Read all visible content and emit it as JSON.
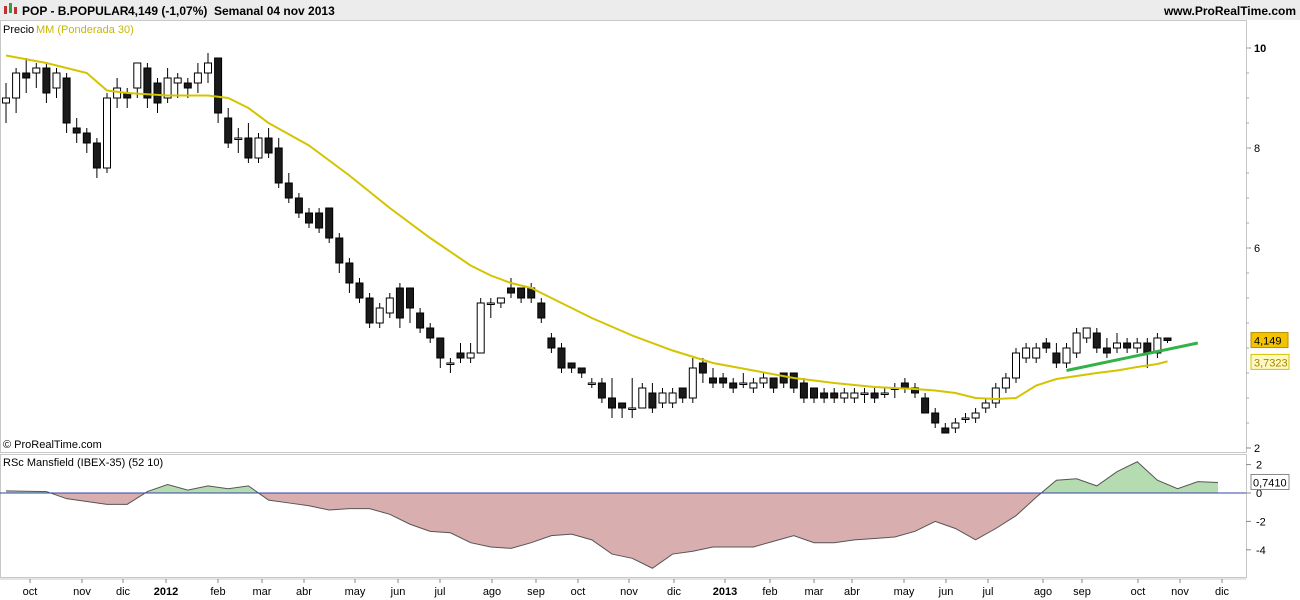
{
  "header": {
    "symbol": "POP - B.POPULAR",
    "last": "4,149 (-1,07%)",
    "period": "Semanal  04 nov 2013",
    "site": "www.ProRealTime.com"
  },
  "legend": {
    "price_label": "Precio",
    "ma_label": "MM (Ponderada 30)"
  },
  "watermark": "© ProRealTime.com",
  "colors": {
    "up_fill": "#ffffff",
    "down_fill": "#1a1a1a",
    "wick": "#000000",
    "ma": "#d4c400",
    "trend": "#33b24a",
    "rsc_pos": "#b5dcb0",
    "rsc_neg": "#d9aeae",
    "rsc_line": "#555555",
    "zero_line": "#3344aa",
    "badge_price": "#f3c200",
    "badge_ma": "#fff7c2"
  },
  "chart_data": [
    {
      "type": "candlestick",
      "xlabels": [
        "oct",
        "nov",
        "dic",
        "2012",
        "feb",
        "mar",
        "abr",
        "may",
        "jun",
        "jul",
        "ago",
        "sep",
        "oct",
        "nov",
        "dic",
        "2013",
        "feb",
        "mar",
        "abr",
        "may",
        "jun",
        "jul",
        "ago",
        "sep",
        "oct",
        "nov",
        "dic"
      ],
      "y_ticks": [
        "10",
        "8",
        "6",
        "2"
      ],
      "ylim": [
        2,
        10.2
      ],
      "last_price": "4,149",
      "ma_last": "3,7323",
      "candles": [
        [
          8.9,
          9.3,
          8.5,
          9.0
        ],
        [
          9.0,
          9.6,
          8.7,
          9.5
        ],
        [
          9.5,
          9.8,
          9.1,
          9.4
        ],
        [
          9.5,
          9.7,
          9.2,
          9.6
        ],
        [
          9.6,
          9.7,
          8.9,
          9.1
        ],
        [
          9.2,
          9.6,
          9.0,
          9.5
        ],
        [
          9.4,
          9.5,
          8.3,
          8.5
        ],
        [
          8.4,
          8.6,
          8.1,
          8.3
        ],
        [
          8.3,
          8.4,
          7.9,
          8.1
        ],
        [
          8.1,
          8.2,
          7.4,
          7.6
        ],
        [
          7.6,
          9.1,
          7.5,
          9.0
        ],
        [
          9.0,
          9.4,
          8.8,
          9.2
        ],
        [
          9.1,
          9.2,
          8.8,
          9.0
        ],
        [
          9.2,
          9.7,
          9.0,
          9.7
        ],
        [
          9.6,
          9.7,
          8.8,
          9.0
        ],
        [
          9.3,
          9.4,
          8.7,
          8.9
        ],
        [
          9.0,
          9.6,
          8.9,
          9.4
        ],
        [
          9.3,
          9.5,
          9.0,
          9.4
        ],
        [
          9.3,
          9.4,
          9.0,
          9.2
        ],
        [
          9.3,
          9.7,
          9.1,
          9.5
        ],
        [
          9.5,
          9.9,
          9.3,
          9.7
        ],
        [
          9.8,
          9.8,
          8.5,
          8.7
        ],
        [
          8.6,
          8.8,
          8.0,
          8.1
        ],
        [
          8.2,
          8.4,
          7.9,
          8.2
        ],
        [
          8.2,
          8.5,
          7.7,
          7.8
        ],
        [
          7.8,
          8.3,
          7.7,
          8.2
        ],
        [
          8.2,
          8.4,
          7.8,
          7.9
        ],
        [
          8.0,
          8.2,
          7.2,
          7.3
        ],
        [
          7.3,
          7.5,
          6.9,
          7.0
        ],
        [
          7.0,
          7.1,
          6.6,
          6.7
        ],
        [
          6.7,
          6.8,
          6.4,
          6.5
        ],
        [
          6.7,
          6.8,
          6.3,
          6.4
        ],
        [
          6.8,
          6.8,
          6.1,
          6.2
        ],
        [
          6.2,
          6.3,
          5.5,
          5.7
        ],
        [
          5.7,
          5.8,
          5.1,
          5.3
        ],
        [
          5.3,
          5.4,
          4.9,
          5.0
        ],
        [
          5.0,
          5.1,
          4.4,
          4.5
        ],
        [
          4.5,
          4.9,
          4.4,
          4.8
        ],
        [
          4.7,
          5.1,
          4.6,
          5.0
        ],
        [
          5.2,
          5.3,
          4.4,
          4.6
        ],
        [
          5.2,
          5.2,
          4.5,
          4.8
        ],
        [
          4.7,
          4.8,
          4.3,
          4.4
        ],
        [
          4.4,
          4.5,
          4.1,
          4.2
        ],
        [
          4.2,
          4.2,
          3.6,
          3.8
        ],
        [
          3.7,
          3.8,
          3.5,
          3.7
        ],
        [
          3.9,
          4.1,
          3.7,
          3.8
        ],
        [
          3.8,
          4.1,
          3.7,
          3.9
        ],
        [
          3.9,
          5.0,
          3.9,
          4.9
        ],
        [
          4.9,
          5.0,
          4.6,
          4.9
        ],
        [
          4.9,
          5.0,
          4.8,
          5.0
        ],
        [
          5.2,
          5.4,
          5.0,
          5.1
        ],
        [
          5.2,
          5.2,
          4.9,
          5.0
        ],
        [
          5.2,
          5.3,
          4.9,
          5.0
        ],
        [
          4.9,
          5.0,
          4.5,
          4.6
        ],
        [
          4.2,
          4.3,
          3.9,
          4.0
        ],
        [
          4.0,
          4.1,
          3.5,
          3.6
        ],
        [
          3.7,
          3.7,
          3.5,
          3.6
        ],
        [
          3.6,
          3.6,
          3.4,
          3.5
        ],
        [
          3.3,
          3.4,
          3.2,
          3.3
        ],
        [
          3.3,
          3.4,
          2.9,
          3.0
        ],
        [
          3.0,
          3.4,
          2.6,
          2.8
        ],
        [
          2.9,
          2.9,
          2.6,
          2.8
        ],
        [
          2.8,
          3.4,
          2.6,
          2.8
        ],
        [
          2.8,
          3.3,
          2.8,
          3.2
        ],
        [
          3.1,
          3.3,
          2.7,
          2.8
        ],
        [
          2.9,
          3.2,
          2.8,
          3.1
        ],
        [
          2.9,
          3.2,
          2.8,
          3.1
        ],
        [
          3.2,
          3.2,
          2.9,
          3.0
        ],
        [
          3.0,
          3.8,
          2.9,
          3.6
        ],
        [
          3.7,
          3.8,
          3.3,
          3.5
        ],
        [
          3.4,
          3.6,
          3.2,
          3.3
        ],
        [
          3.4,
          3.5,
          3.2,
          3.3
        ],
        [
          3.3,
          3.4,
          3.1,
          3.2
        ],
        [
          3.3,
          3.5,
          3.2,
          3.3
        ],
        [
          3.2,
          3.4,
          3.1,
          3.3
        ],
        [
          3.3,
          3.5,
          3.2,
          3.4
        ],
        [
          3.4,
          3.4,
          3.1,
          3.2
        ],
        [
          3.5,
          3.5,
          3.2,
          3.3
        ],
        [
          3.5,
          3.5,
          3.1,
          3.2
        ],
        [
          3.3,
          3.4,
          2.9,
          3.0
        ],
        [
          3.2,
          3.2,
          2.9,
          3.0
        ],
        [
          3.1,
          3.2,
          2.9,
          3.0
        ],
        [
          3.1,
          3.2,
          2.9,
          3.0
        ],
        [
          3.0,
          3.2,
          2.9,
          3.1
        ],
        [
          3.0,
          3.2,
          2.9,
          3.1
        ],
        [
          3.1,
          3.2,
          2.9,
          3.1
        ],
        [
          3.1,
          3.2,
          2.9,
          3.0
        ],
        [
          3.1,
          3.2,
          3.0,
          3.1
        ],
        [
          3.2,
          3.3,
          3.0,
          3.2
        ],
        [
          3.3,
          3.4,
          3.1,
          3.2
        ],
        [
          3.2,
          3.3,
          3.0,
          3.1
        ],
        [
          3.0,
          3.1,
          2.7,
          2.7
        ],
        [
          2.7,
          2.8,
          2.4,
          2.5
        ],
        [
          2.4,
          2.5,
          2.3,
          2.3
        ],
        [
          2.4,
          2.6,
          2.3,
          2.5
        ],
        [
          2.6,
          2.7,
          2.5,
          2.6
        ],
        [
          2.6,
          2.8,
          2.5,
          2.7
        ],
        [
          2.8,
          3.0,
          2.7,
          2.9
        ],
        [
          2.9,
          3.3,
          2.8,
          3.2
        ],
        [
          3.2,
          3.5,
          3.1,
          3.4
        ],
        [
          3.4,
          4.0,
          3.3,
          3.9
        ],
        [
          3.8,
          4.1,
          3.7,
          4.0
        ],
        [
          3.8,
          4.1,
          3.7,
          4.0
        ],
        [
          4.1,
          4.2,
          3.9,
          4.0
        ],
        [
          3.9,
          4.1,
          3.6,
          3.7
        ],
        [
          3.7,
          4.1,
          3.6,
          4.0
        ],
        [
          3.9,
          4.4,
          3.8,
          4.3
        ],
        [
          4.2,
          4.4,
          4.1,
          4.4
        ],
        [
          4.3,
          4.4,
          3.9,
          4.0
        ],
        [
          4.0,
          4.2,
          3.8,
          3.9
        ],
        [
          4.0,
          4.3,
          3.9,
          4.1
        ],
        [
          4.1,
          4.2,
          3.9,
          4.0
        ],
        [
          4.0,
          4.2,
          3.9,
          4.1
        ],
        [
          4.1,
          4.2,
          3.6,
          3.9
        ],
        [
          3.9,
          4.3,
          3.8,
          4.2
        ],
        [
          4.2,
          4.2,
          4.1,
          4.15
        ]
      ],
      "ma": [
        [
          0,
          9.85
        ],
        [
          4,
          9.7
        ],
        [
          8,
          9.5
        ],
        [
          10,
          9.15
        ],
        [
          12,
          9.1
        ],
        [
          16,
          9.05
        ],
        [
          20,
          9.05
        ],
        [
          22,
          9.0
        ],
        [
          24,
          8.8
        ],
        [
          26,
          8.5
        ],
        [
          30,
          8.05
        ],
        [
          34,
          7.45
        ],
        [
          38,
          6.8
        ],
        [
          42,
          6.2
        ],
        [
          46,
          5.65
        ],
        [
          48,
          5.45
        ],
        [
          50,
          5.3
        ],
        [
          52,
          5.2
        ],
        [
          54,
          5.0
        ],
        [
          58,
          4.6
        ],
        [
          62,
          4.25
        ],
        [
          66,
          3.95
        ],
        [
          70,
          3.7
        ],
        [
          74,
          3.55
        ],
        [
          78,
          3.4
        ],
        [
          82,
          3.3
        ],
        [
          86,
          3.22
        ],
        [
          90,
          3.18
        ],
        [
          92,
          3.15
        ],
        [
          94,
          3.1
        ],
        [
          96,
          3.0
        ],
        [
          98,
          2.98
        ],
        [
          100,
          3.0
        ],
        [
          102,
          3.25
        ],
        [
          104,
          3.38
        ],
        [
          106,
          3.44
        ],
        [
          108,
          3.5
        ],
        [
          110,
          3.55
        ],
        [
          112,
          3.62
        ],
        [
          114,
          3.68
        ],
        [
          115,
          3.7323
        ]
      ],
      "trendline": [
        [
          105,
          3.55
        ],
        [
          118,
          4.1
        ]
      ]
    },
    {
      "type": "area",
      "title": "RSc Mansfield (IBEX-35) (52 10)",
      "y_ticks": [
        "2",
        "0",
        "-2",
        "-4"
      ],
      "ylim": [
        -5.8,
        2.5
      ],
      "last_value": "0,7410",
      "values": [
        [
          0,
          0.15
        ],
        [
          4,
          0.1
        ],
        [
          6,
          -0.4
        ],
        [
          8,
          -0.6
        ],
        [
          10,
          -0.8
        ],
        [
          12,
          -0.8
        ],
        [
          14,
          0.1
        ],
        [
          16,
          0.6
        ],
        [
          18,
          0.2
        ],
        [
          20,
          0.5
        ],
        [
          22,
          0.3
        ],
        [
          24,
          0.5
        ],
        [
          26,
          -0.5
        ],
        [
          28,
          -0.7
        ],
        [
          30,
          -0.9
        ],
        [
          32,
          -1.2
        ],
        [
          34,
          -1.1
        ],
        [
          36,
          -1.1
        ],
        [
          38,
          -1.5
        ],
        [
          40,
          -2.2
        ],
        [
          42,
          -2.7
        ],
        [
          44,
          -2.8
        ],
        [
          46,
          -3.5
        ],
        [
          48,
          -3.8
        ],
        [
          50,
          -3.9
        ],
        [
          52,
          -3.5
        ],
        [
          54,
          -3.0
        ],
        [
          56,
          -2.9
        ],
        [
          58,
          -3.3
        ],
        [
          60,
          -4.3
        ],
        [
          62,
          -4.6
        ],
        [
          64,
          -5.3
        ],
        [
          66,
          -4.3
        ],
        [
          68,
          -4.1
        ],
        [
          70,
          -3.8
        ],
        [
          72,
          -3.8
        ],
        [
          74,
          -3.8
        ],
        [
          76,
          -3.4
        ],
        [
          78,
          -3.0
        ],
        [
          80,
          -3.5
        ],
        [
          82,
          -3.5
        ],
        [
          84,
          -3.3
        ],
        [
          86,
          -3.2
        ],
        [
          88,
          -3.1
        ],
        [
          90,
          -2.7
        ],
        [
          92,
          -2.0
        ],
        [
          94,
          -2.5
        ],
        [
          96,
          -3.3
        ],
        [
          98,
          -2.5
        ],
        [
          100,
          -1.6
        ],
        [
          102,
          -0.3
        ],
        [
          104,
          0.9
        ],
        [
          106,
          1.0
        ],
        [
          108,
          0.5
        ],
        [
          110,
          1.5
        ],
        [
          112,
          2.2
        ],
        [
          114,
          0.9
        ],
        [
          116,
          0.3
        ],
        [
          118,
          0.8
        ],
        [
          120,
          0.74
        ]
      ]
    }
  ]
}
